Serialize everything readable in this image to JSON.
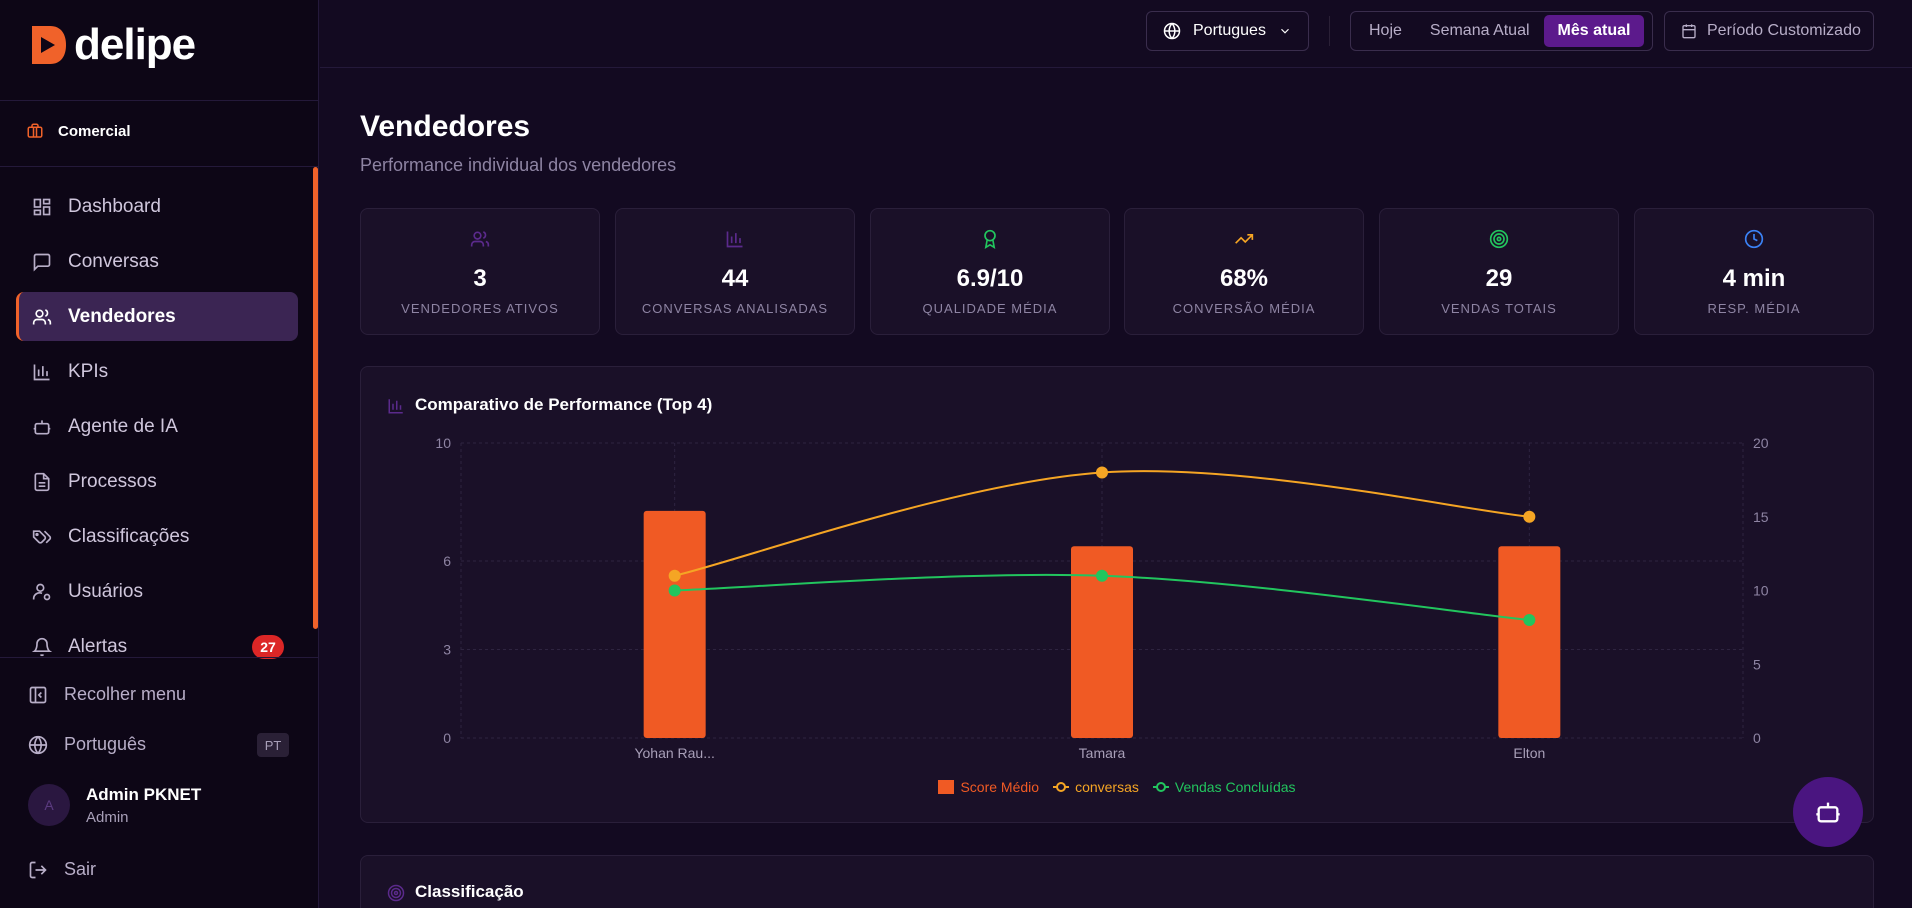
{
  "brand": {
    "name": "delipe",
    "accent": "#f0622a"
  },
  "workspace": {
    "label": "Comercial",
    "icon": "briefcase-icon"
  },
  "sidebar": {
    "items": [
      {
        "label": "Dashboard",
        "icon": "dashboard-icon"
      },
      {
        "label": "Conversas",
        "icon": "chat-icon"
      },
      {
        "label": "Vendedores",
        "icon": "users-icon",
        "active": true
      },
      {
        "label": "KPIs",
        "icon": "bar-chart-icon"
      },
      {
        "label": "Agente de IA",
        "icon": "bot-icon"
      },
      {
        "label": "Processos",
        "icon": "document-icon"
      },
      {
        "label": "Classificações",
        "icon": "tags-icon"
      },
      {
        "label": "Usuários",
        "icon": "user-settings-icon"
      },
      {
        "label": "Alertas",
        "icon": "bell-icon",
        "badge": "27"
      }
    ],
    "collapse_label": "Recolher menu",
    "language_label": "Português",
    "language_code": "PT",
    "user": {
      "initial": "A",
      "name": "Admin PKNET",
      "role": "Admin"
    },
    "logout_label": "Sair"
  },
  "topbar": {
    "language": "Portugues",
    "periods": [
      "Hoje",
      "Semana Atual",
      "Mês atual"
    ],
    "active_period": "Mês atual",
    "custom_period": "Período Customizado"
  },
  "page": {
    "title": "Vendedores",
    "subtitle": "Performance individual dos vendedores"
  },
  "kpis": [
    {
      "value": "3",
      "label": "VENDEDORES ATIVOS",
      "icon": "users-icon",
      "color": "#5b2a8c"
    },
    {
      "value": "44",
      "label": "CONVERSAS ANALISADAS",
      "icon": "bar-chart-icon",
      "color": "#5b2a8c"
    },
    {
      "value": "6.9/10",
      "label": "QUALIDADE MÉDIA",
      "icon": "award-icon",
      "color": "#22c55e"
    },
    {
      "value": "68%",
      "label": "CONVERSÃO MÉDIA",
      "icon": "trending-up-icon",
      "color": "#f5a524"
    },
    {
      "value": "29",
      "label": "VENDAS TOTAIS",
      "icon": "target-icon",
      "color": "#22c55e"
    },
    {
      "value": "4 min",
      "label": "RESP. MÉDIA",
      "icon": "clock-icon",
      "color": "#3b82f6"
    }
  ],
  "chart_card": {
    "title": "Comparativo de Performance (Top 4)"
  },
  "chart_data": {
    "type": "bar",
    "title": "Comparativo de Performance (Top 4)",
    "categories": [
      "Yohan Rau...",
      "Tamara",
      "Elton"
    ],
    "left_axis": {
      "ticks": [
        0,
        3,
        6,
        10
      ],
      "ylim": [
        0,
        10
      ]
    },
    "right_axis": {
      "ticks": [
        0,
        5,
        10,
        15,
        20
      ],
      "ylim": [
        0,
        20
      ]
    },
    "grid": true,
    "legend_position": "bottom-center",
    "series": [
      {
        "name": "Score Médio",
        "kind": "bar",
        "axis": "left",
        "color": "#f05a24",
        "values": [
          7.7,
          6.5,
          6.5
        ]
      },
      {
        "name": "conversas",
        "kind": "line",
        "axis": "right",
        "color": "#f5a524",
        "values": [
          11,
          18,
          15
        ]
      },
      {
        "name": "Vendas Concluídas",
        "kind": "line",
        "axis": "right",
        "color": "#22c55e",
        "values": [
          10,
          11,
          8
        ]
      }
    ]
  },
  "classification_card": {
    "title": "Classificação"
  }
}
